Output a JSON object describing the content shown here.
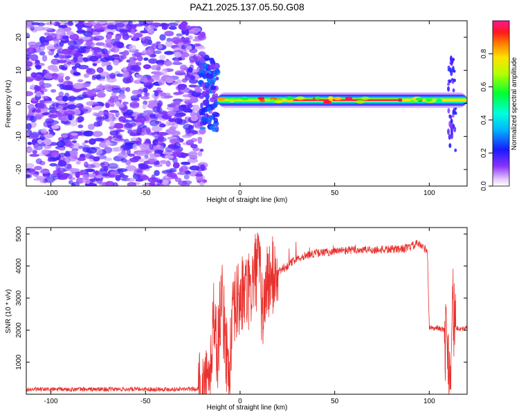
{
  "figure": {
    "title": "PAZ1.2025.137.05.50.G08"
  },
  "chart_data": [
    {
      "type": "heatmap",
      "xlabel": "Height of straight line (km)",
      "ylabel": "Frequency (Hz)",
      "xlim": [
        -113,
        120
      ],
      "ylim": [
        -25,
        25
      ],
      "xticks": [
        -100,
        -50,
        0,
        50,
        100
      ],
      "yticks": [
        -20,
        -10,
        0,
        10,
        20
      ],
      "colorbar": {
        "label": "Normalized spectral amplitude",
        "range": [
          0,
          1
        ],
        "ticks": [
          0.0,
          0.2,
          0.4,
          0.6,
          0.8
        ],
        "tick_labels": [
          "0.0",
          "0.2",
          "0.4",
          "0.6",
          "0.8"
        ]
      },
      "regions": [
        {
          "name": "noise",
          "x_range": [
            -113,
            -21
          ],
          "y_range": [
            -25,
            25
          ],
          "amplitude": [
            0.05,
            0.2
          ]
        },
        {
          "name": "transition",
          "x_range": [
            -21,
            -12
          ],
          "y_range": [
            -8,
            14
          ],
          "amplitude": [
            0.1,
            0.3
          ]
        },
        {
          "name": "signal",
          "x_range": [
            -12,
            120
          ],
          "frequency_hz": 1.0,
          "amplitude": [
            0.5,
            1.0
          ]
        },
        {
          "name": "dropout",
          "x_range": [
            110,
            114
          ],
          "y_range": [
            -15,
            15
          ],
          "amplitude": [
            0.1,
            0.25
          ]
        }
      ]
    },
    {
      "type": "line",
      "xlabel": "Height of straight line (km)",
      "ylabel": "SNR (10 * v/v)",
      "xlim": [
        -113,
        120
      ],
      "ylim": [
        0,
        5200
      ],
      "xticks": [
        -100,
        -50,
        0,
        50,
        100
      ],
      "yticks": [
        1000,
        2000,
        3000,
        4000,
        5000
      ],
      "color": "#e8302c",
      "series_envelope": {
        "x": [
          -113,
          -22,
          -16,
          -14,
          -12,
          -10,
          -6,
          -4,
          -2,
          0,
          3,
          5,
          8,
          10,
          12,
          14,
          20,
          25,
          30,
          40,
          50,
          60,
          70,
          80,
          88,
          92,
          94,
          96,
          99,
          100,
          102,
          104,
          106,
          108,
          110,
          111,
          112,
          114,
          116,
          120
        ],
        "y": [
          150,
          160,
          300,
          2600,
          1200,
          3100,
          600,
          2200,
          2800,
          3000,
          3200,
          3100,
          3800,
          4000,
          2400,
          3500,
          3800,
          4000,
          4250,
          4400,
          4450,
          4500,
          4500,
          4520,
          4550,
          4650,
          4700,
          4600,
          4500,
          2100,
          2050,
          2080,
          2050,
          2000,
          1200,
          600,
          2800,
          2050,
          2050,
          2050
        ]
      }
    }
  ]
}
